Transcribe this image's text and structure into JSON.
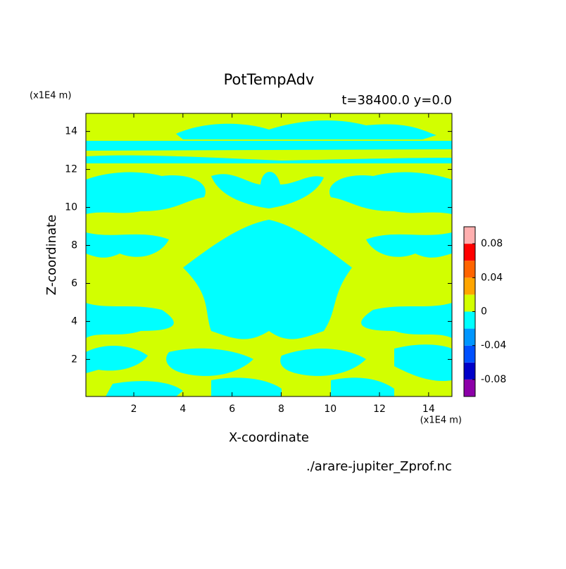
{
  "chart_data": {
    "type": "contour",
    "title": "PotTempAdv",
    "subtitle": "t=38400.0 y=0.0",
    "x_label": "X-coordinate",
    "y_label": "Z-coordinate",
    "x_unit": "(x1E4 m)",
    "y_unit": "(x1E4 m)",
    "footer": "./arare-jupiter_Zprof.nc",
    "xlim": [
      0.05,
      14.95
    ],
    "ylim": [
      0.05,
      14.95
    ],
    "xticks": [
      2,
      4,
      6,
      8,
      10,
      12,
      14
    ],
    "yticks": [
      2,
      4,
      6,
      8,
      10,
      12,
      14
    ],
    "levels": [
      -0.1,
      -0.08,
      -0.06,
      -0.04,
      -0.02,
      0,
      0.02,
      0.04,
      0.06,
      0.08,
      0.1
    ],
    "level_colors": [
      "#8c00a8",
      "#0000c8",
      "#0050ff",
      "#0096ff",
      "#00ffff",
      "#d2ff00",
      "#ffa500",
      "#ff6400",
      "#ff0000",
      "#ffafaf"
    ],
    "colorbar_ticks": [
      -0.08,
      -0.04,
      0,
      0.04,
      0.08
    ]
  }
}
